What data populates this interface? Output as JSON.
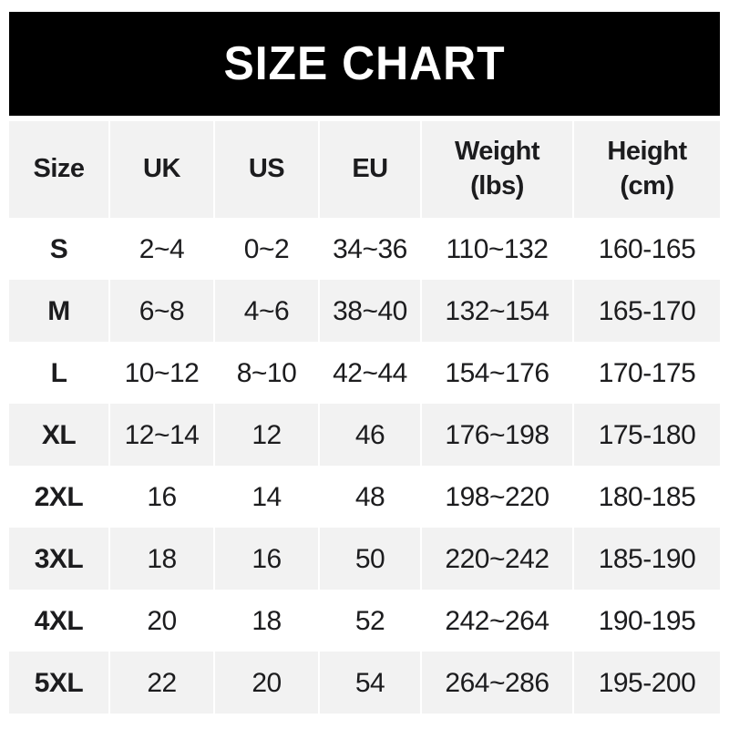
{
  "banner": {
    "title": "SIZE CHART",
    "background_color": "#000000",
    "text_color": "#ffffff"
  },
  "table": {
    "alt_row_background": "#f2f2f2",
    "text_color": "#1c1c1e",
    "columns": [
      "Size",
      "UK",
      "US",
      "EU",
      "Weight\n(lbs)",
      "Height\n(cm)"
    ],
    "rows": [
      {
        "size": "S",
        "uk": "2~4",
        "us": "0~2",
        "eu": "34~36",
        "weight": "110~132",
        "height": "160-165"
      },
      {
        "size": "M",
        "uk": "6~8",
        "us": "4~6",
        "eu": "38~40",
        "weight": "132~154",
        "height": "165-170"
      },
      {
        "size": "L",
        "uk": "10~12",
        "us": "8~10",
        "eu": "42~44",
        "weight": "154~176",
        "height": "170-175"
      },
      {
        "size": "XL",
        "uk": "12~14",
        "us": "12",
        "eu": "46",
        "weight": "176~198",
        "height": "175-180"
      },
      {
        "size": "2XL",
        "uk": "16",
        "us": "14",
        "eu": "48",
        "weight": "198~220",
        "height": "180-185"
      },
      {
        "size": "3XL",
        "uk": "18",
        "us": "16",
        "eu": "50",
        "weight": "220~242",
        "height": "185-190"
      },
      {
        "size": "4XL",
        "uk": "20",
        "us": "18",
        "eu": "52",
        "weight": "242~264",
        "height": "190-195"
      },
      {
        "size": "5XL",
        "uk": "22",
        "us": "20",
        "eu": "54",
        "weight": "264~286",
        "height": "195-200"
      }
    ]
  }
}
